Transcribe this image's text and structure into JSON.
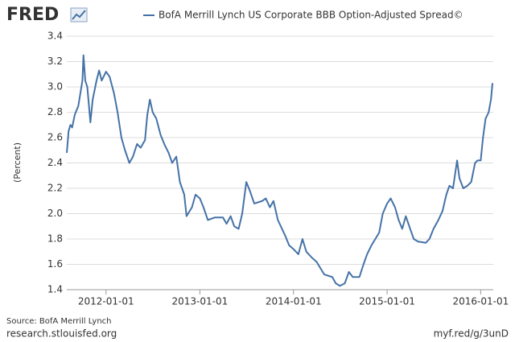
{
  "logo": "FRED",
  "footer": {
    "source": "Source: BofA Merrill Lynch",
    "site": "research.stlouisfed.org",
    "short_link": "myf.red/g/3unD"
  },
  "chart_data": {
    "type": "line",
    "ylabel": "(Percent)",
    "grid": true,
    "x": [
      "2011-08-01",
      "2011-08-08",
      "2011-08-15",
      "2011-08-22",
      "2011-09-01",
      "2011-09-15",
      "2011-10-01",
      "2011-10-05",
      "2011-10-12",
      "2011-10-20",
      "2011-11-01",
      "2011-11-10",
      "2011-11-25",
      "2011-12-05",
      "2011-12-15",
      "2012-01-01",
      "2012-01-15",
      "2012-02-01",
      "2012-02-15",
      "2012-03-01",
      "2012-03-15",
      "2012-04-01",
      "2012-04-15",
      "2012-05-01",
      "2012-05-15",
      "2012-06-01",
      "2012-06-10",
      "2012-06-20",
      "2012-07-01",
      "2012-07-15",
      "2012-08-01",
      "2012-08-15",
      "2012-09-01",
      "2012-09-15",
      "2012-10-01",
      "2012-10-15",
      "2012-11-01",
      "2012-11-10",
      "2012-12-01",
      "2012-12-15",
      "2013-01-01",
      "2013-01-15",
      "2013-02-01",
      "2013-03-01",
      "2013-04-01",
      "2013-04-15",
      "2013-05-01",
      "2013-05-15",
      "2013-06-01",
      "2013-06-15",
      "2013-07-01",
      "2013-07-15",
      "2013-08-01",
      "2013-09-01",
      "2013-09-15",
      "2013-10-01",
      "2013-10-15",
      "2013-11-01",
      "2013-12-01",
      "2013-12-15",
      "2014-01-01",
      "2014-01-20",
      "2014-02-05",
      "2014-02-20",
      "2014-03-15",
      "2014-04-01",
      "2014-05-01",
      "2014-06-01",
      "2014-06-15",
      "2014-07-01",
      "2014-07-20",
      "2014-08-05",
      "2014-08-20",
      "2014-09-15",
      "2014-10-01",
      "2014-10-15",
      "2014-11-01",
      "2014-12-01",
      "2014-12-15",
      "2015-01-01",
      "2015-01-15",
      "2015-02-01",
      "2015-02-15",
      "2015-03-01",
      "2015-03-15",
      "2015-04-01",
      "2015-04-15",
      "2015-05-01",
      "2015-06-01",
      "2015-06-15",
      "2015-07-01",
      "2015-07-20",
      "2015-08-05",
      "2015-08-20",
      "2015-09-01",
      "2015-09-15",
      "2015-10-01",
      "2015-10-10",
      "2015-10-25",
      "2015-11-10",
      "2015-11-25",
      "2015-12-10",
      "2015-12-20",
      "2016-01-01",
      "2016-01-10",
      "2016-01-20",
      "2016-02-01",
      "2016-02-10",
      "2016-02-16"
    ],
    "series": [
      {
        "name": "BofA Merrill Lynch US Corporate BBB Option-Adjusted Spread©",
        "color": "#4572a7",
        "values": [
          2.48,
          2.65,
          2.7,
          2.68,
          2.78,
          2.85,
          3.05,
          3.25,
          3.05,
          3.0,
          2.72,
          2.9,
          3.05,
          3.13,
          3.05,
          3.12,
          3.08,
          2.95,
          2.8,
          2.6,
          2.5,
          2.4,
          2.45,
          2.55,
          2.52,
          2.58,
          2.78,
          2.9,
          2.8,
          2.75,
          2.62,
          2.55,
          2.48,
          2.4,
          2.45,
          2.25,
          2.15,
          1.98,
          2.05,
          2.15,
          2.12,
          2.05,
          1.95,
          1.97,
          1.97,
          1.92,
          1.98,
          1.9,
          1.88,
          2.0,
          2.25,
          2.18,
          2.08,
          2.1,
          2.12,
          2.05,
          2.1,
          1.95,
          1.82,
          1.75,
          1.72,
          1.68,
          1.8,
          1.7,
          1.65,
          1.62,
          1.52,
          1.5,
          1.45,
          1.43,
          1.45,
          1.54,
          1.5,
          1.5,
          1.6,
          1.68,
          1.75,
          1.85,
          2.0,
          2.08,
          2.12,
          2.05,
          1.95,
          1.88,
          1.98,
          1.88,
          1.8,
          1.78,
          1.77,
          1.8,
          1.88,
          1.95,
          2.02,
          2.15,
          2.22,
          2.2,
          2.42,
          2.28,
          2.2,
          2.22,
          2.25,
          2.4,
          2.42,
          2.42,
          2.6,
          2.75,
          2.8,
          2.9,
          3.03
        ]
      }
    ],
    "xlim": [
      "2011-08-01",
      "2016-02-19"
    ],
    "xticks": [
      "2012-01-01",
      "2013-01-01",
      "2014-01-01",
      "2015-01-01",
      "2016-01-01"
    ],
    "ylim": [
      1.4,
      3.4
    ],
    "yticks": [
      1.4,
      1.6,
      1.8,
      {
        "value": 2,
        "label": "2.0"
      },
      2.2,
      2.4,
      2.6,
      2.8,
      {
        "value": 3,
        "label": "3.0"
      },
      3.2,
      3.4
    ]
  }
}
